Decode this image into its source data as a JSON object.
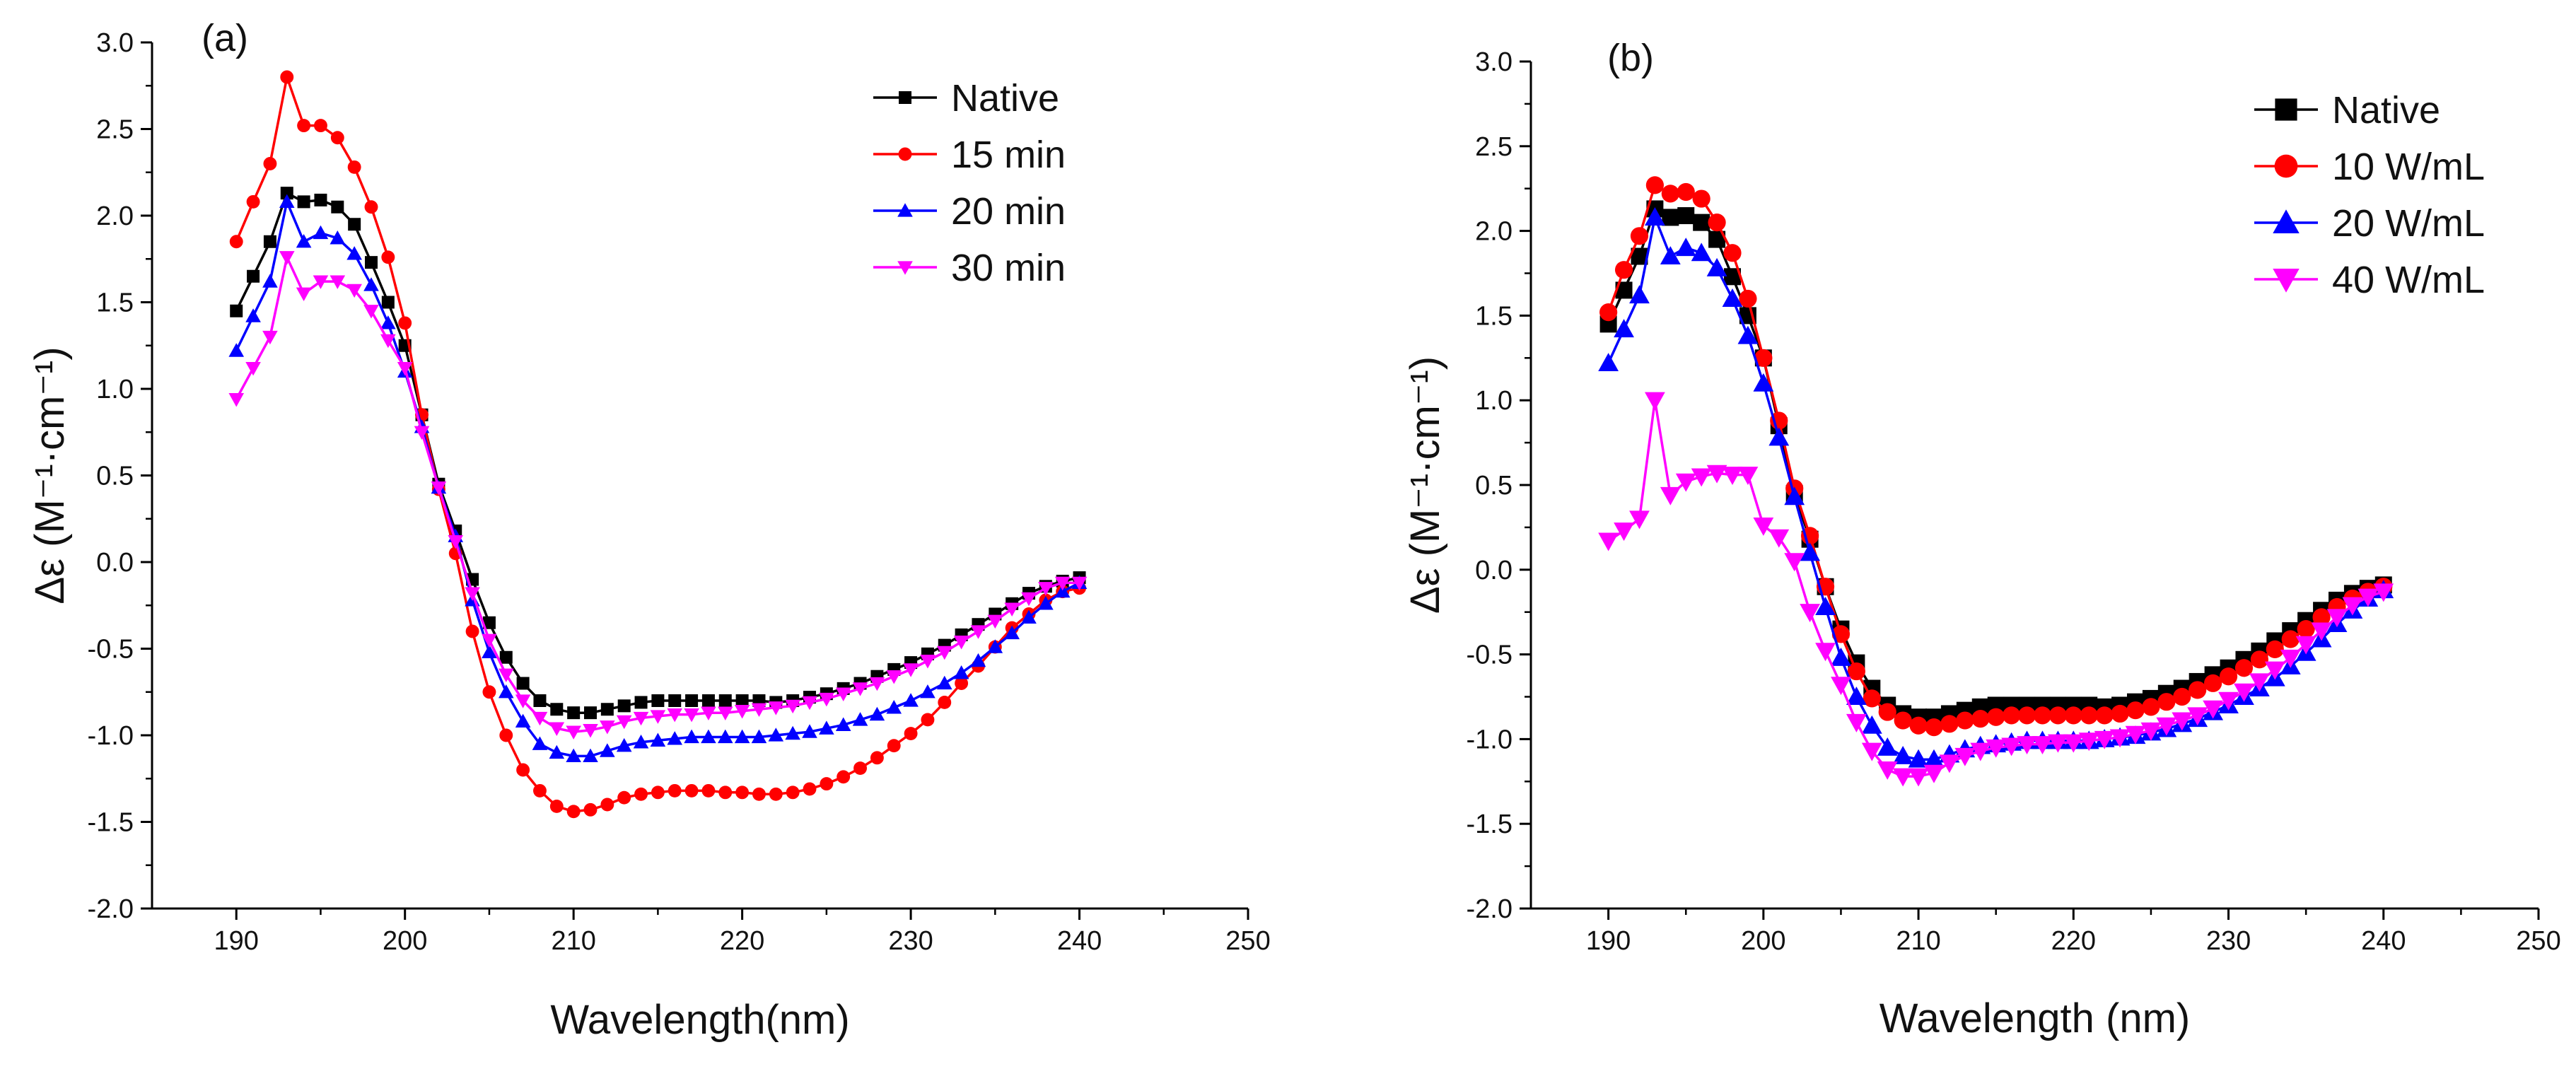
{
  "chart_data": [
    {
      "type": "line",
      "panel_label": "(a)",
      "title": "",
      "xlabel": "Wavelength(nm)",
      "ylabel": "Δε (M⁻¹·cm⁻¹)",
      "xlim": [
        185,
        250
      ],
      "ylim": [
        -2.0,
        3.0
      ],
      "xticks": [
        190,
        200,
        210,
        220,
        230,
        240,
        250
      ],
      "yticks": [
        "3.0",
        "2.5",
        "2.0",
        "1.5",
        "1.0",
        "0.5",
        "0.0",
        "-0.5",
        "-1.0",
        "-1.5",
        "-2.0"
      ],
      "legend_position": "top-right",
      "x": [
        190,
        191,
        192,
        193,
        194,
        195,
        196,
        197,
        198,
        199,
        200,
        201,
        202,
        203,
        204,
        205,
        206,
        207,
        208,
        209,
        210,
        211,
        212,
        213,
        214,
        215,
        216,
        217,
        218,
        219,
        220,
        221,
        222,
        223,
        224,
        225,
        226,
        227,
        228,
        229,
        230,
        231,
        232,
        233,
        234,
        235,
        236,
        237,
        238,
        239,
        240
      ],
      "series": [
        {
          "name": "Native",
          "color": "#000000",
          "marker": "square",
          "values": [
            1.45,
            1.65,
            1.85,
            2.13,
            2.08,
            2.09,
            2.05,
            1.95,
            1.73,
            1.5,
            1.25,
            0.85,
            0.45,
            0.18,
            -0.1,
            -0.35,
            -0.55,
            -0.7,
            -0.8,
            -0.85,
            -0.87,
            -0.87,
            -0.85,
            -0.83,
            -0.81,
            -0.8,
            -0.8,
            -0.8,
            -0.8,
            -0.8,
            -0.8,
            -0.8,
            -0.81,
            -0.8,
            -0.78,
            -0.76,
            -0.73,
            -0.7,
            -0.66,
            -0.62,
            -0.58,
            -0.53,
            -0.48,
            -0.42,
            -0.36,
            -0.3,
            -0.24,
            -0.18,
            -0.14,
            -0.11,
            -0.09
          ]
        },
        {
          "name": "15 min",
          "color": "#ff0000",
          "marker": "circle",
          "values": [
            1.85,
            2.08,
            2.3,
            2.8,
            2.52,
            2.52,
            2.45,
            2.28,
            2.05,
            1.76,
            1.38,
            0.85,
            0.42,
            0.05,
            -0.4,
            -0.75,
            -1.0,
            -1.2,
            -1.32,
            -1.41,
            -1.44,
            -1.43,
            -1.4,
            -1.36,
            -1.34,
            -1.33,
            -1.32,
            -1.32,
            -1.32,
            -1.33,
            -1.33,
            -1.34,
            -1.34,
            -1.33,
            -1.31,
            -1.28,
            -1.24,
            -1.19,
            -1.13,
            -1.06,
            -0.99,
            -0.91,
            -0.81,
            -0.7,
            -0.6,
            -0.49,
            -0.38,
            -0.3,
            -0.22,
            -0.17,
            -0.15
          ]
        },
        {
          "name": "20 min",
          "color": "#0000ff",
          "marker": "triangle-up",
          "values": [
            1.22,
            1.42,
            1.62,
            2.08,
            1.85,
            1.9,
            1.87,
            1.78,
            1.6,
            1.38,
            1.1,
            0.78,
            0.43,
            0.15,
            -0.22,
            -0.52,
            -0.75,
            -0.92,
            -1.05,
            -1.1,
            -1.12,
            -1.12,
            -1.09,
            -1.06,
            -1.04,
            -1.03,
            -1.02,
            -1.01,
            -1.01,
            -1.01,
            -1.01,
            -1.01,
            -1.0,
            -0.99,
            -0.98,
            -0.96,
            -0.94,
            -0.91,
            -0.88,
            -0.84,
            -0.8,
            -0.75,
            -0.7,
            -0.64,
            -0.57,
            -0.49,
            -0.41,
            -0.32,
            -0.24,
            -0.17,
            -0.12
          ]
        },
        {
          "name": "30 min",
          "color": "#ff00ff",
          "marker": "triangle-down",
          "values": [
            0.94,
            1.12,
            1.3,
            1.76,
            1.55,
            1.62,
            1.62,
            1.57,
            1.45,
            1.28,
            1.12,
            0.75,
            0.43,
            0.12,
            -0.18,
            -0.45,
            -0.65,
            -0.8,
            -0.9,
            -0.96,
            -0.98,
            -0.97,
            -0.95,
            -0.92,
            -0.9,
            -0.89,
            -0.88,
            -0.88,
            -0.87,
            -0.87,
            -0.86,
            -0.85,
            -0.84,
            -0.83,
            -0.81,
            -0.79,
            -0.76,
            -0.73,
            -0.7,
            -0.66,
            -0.62,
            -0.57,
            -0.52,
            -0.46,
            -0.4,
            -0.34,
            -0.27,
            -0.21,
            -0.15,
            -0.12,
            -0.12
          ]
        }
      ]
    },
    {
      "type": "line",
      "panel_label": "(b)",
      "title": "",
      "xlabel": "Wavelength (nm)",
      "ylabel": "Δε (M⁻¹·cm⁻¹)",
      "xlim": [
        185,
        250
      ],
      "ylim": [
        -2.0,
        3.0
      ],
      "xticks": [
        190,
        200,
        210,
        220,
        230,
        240,
        250
      ],
      "yticks": [
        "3.0",
        "2.5",
        "2.0",
        "1.5",
        "1.0",
        "0.5",
        "0.0",
        "-0.5",
        "-1.0",
        "-1.5",
        "-2.0"
      ],
      "legend_position": "top-right",
      "x": [
        190,
        191,
        192,
        193,
        194,
        195,
        196,
        197,
        198,
        199,
        200,
        201,
        202,
        203,
        204,
        205,
        206,
        207,
        208,
        209,
        210,
        211,
        212,
        213,
        214,
        215,
        216,
        217,
        218,
        219,
        220,
        221,
        222,
        223,
        224,
        225,
        226,
        227,
        228,
        229,
        230,
        231,
        232,
        233,
        234,
        235,
        236,
        237,
        238,
        239,
        240
      ],
      "series": [
        {
          "name": "Native",
          "color": "#000000",
          "marker": "square",
          "values": [
            1.45,
            1.65,
            1.85,
            2.13,
            2.08,
            2.09,
            2.05,
            1.95,
            1.73,
            1.5,
            1.25,
            0.85,
            0.45,
            0.18,
            -0.1,
            -0.35,
            -0.55,
            -0.7,
            -0.8,
            -0.85,
            -0.87,
            -0.87,
            -0.85,
            -0.83,
            -0.81,
            -0.8,
            -0.8,
            -0.8,
            -0.8,
            -0.8,
            -0.8,
            -0.8,
            -0.81,
            -0.8,
            -0.78,
            -0.76,
            -0.73,
            -0.7,
            -0.66,
            -0.62,
            -0.58,
            -0.53,
            -0.48,
            -0.42,
            -0.36,
            -0.3,
            -0.24,
            -0.18,
            -0.14,
            -0.11,
            -0.09
          ]
        },
        {
          "name": "10 W/mL",
          "color": "#ff0000",
          "marker": "circle",
          "values": [
            1.52,
            1.77,
            1.97,
            2.27,
            2.22,
            2.23,
            2.19,
            2.05,
            1.87,
            1.6,
            1.25,
            0.88,
            0.48,
            0.2,
            -0.1,
            -0.38,
            -0.6,
            -0.76,
            -0.84,
            -0.89,
            -0.92,
            -0.93,
            -0.91,
            -0.89,
            -0.88,
            -0.87,
            -0.86,
            -0.86,
            -0.86,
            -0.86,
            -0.86,
            -0.86,
            -0.86,
            -0.85,
            -0.83,
            -0.81,
            -0.78,
            -0.75,
            -0.71,
            -0.67,
            -0.63,
            -0.58,
            -0.53,
            -0.47,
            -0.41,
            -0.35,
            -0.28,
            -0.22,
            -0.17,
            -0.13,
            -0.1
          ]
        },
        {
          "name": "20 W/mL",
          "color": "#0000ff",
          "marker": "triangle-up",
          "values": [
            1.22,
            1.42,
            1.62,
            2.08,
            1.85,
            1.9,
            1.87,
            1.78,
            1.6,
            1.38,
            1.1,
            0.78,
            0.43,
            0.1,
            -0.22,
            -0.52,
            -0.75,
            -0.92,
            -1.05,
            -1.1,
            -1.12,
            -1.12,
            -1.09,
            -1.06,
            -1.04,
            -1.03,
            -1.02,
            -1.01,
            -1.01,
            -1.01,
            -1.01,
            -1.01,
            -1.0,
            -0.99,
            -0.98,
            -0.96,
            -0.94,
            -0.91,
            -0.88,
            -0.84,
            -0.8,
            -0.75,
            -0.7,
            -0.64,
            -0.57,
            -0.49,
            -0.41,
            -0.32,
            -0.24,
            -0.17,
            -0.12
          ]
        },
        {
          "name": "40 W/mL",
          "color": "#ff00ff",
          "marker": "triangle-down",
          "values": [
            0.17,
            0.23,
            0.3,
            1.0,
            0.44,
            0.52,
            0.55,
            0.57,
            0.56,
            0.56,
            0.26,
            0.19,
            0.05,
            -0.25,
            -0.48,
            -0.68,
            -0.9,
            -1.07,
            -1.18,
            -1.22,
            -1.22,
            -1.2,
            -1.14,
            -1.1,
            -1.07,
            -1.05,
            -1.04,
            -1.03,
            -1.03,
            -1.02,
            -1.02,
            -1.01,
            -1.0,
            -0.99,
            -0.97,
            -0.95,
            -0.92,
            -0.89,
            -0.86,
            -0.82,
            -0.77,
            -0.72,
            -0.66,
            -0.59,
            -0.52,
            -0.44,
            -0.36,
            -0.28,
            -0.21,
            -0.16,
            -0.13
          ]
        }
      ]
    }
  ]
}
